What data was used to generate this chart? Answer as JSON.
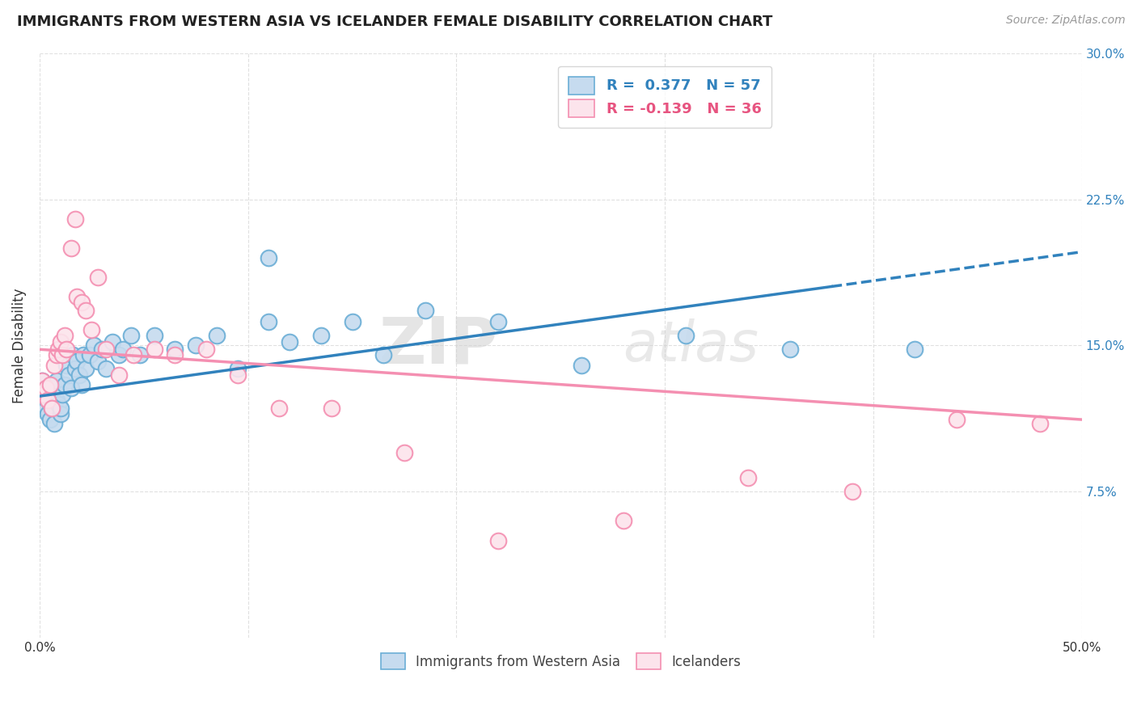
{
  "title": "IMMIGRANTS FROM WESTERN ASIA VS ICELANDER FEMALE DISABILITY CORRELATION CHART",
  "source": "Source: ZipAtlas.com",
  "ylabel": "Female Disability",
  "x_min": 0.0,
  "x_max": 0.5,
  "y_min": 0.0,
  "y_max": 0.3,
  "x_ticks": [
    0.0,
    0.1,
    0.2,
    0.3,
    0.4,
    0.5
  ],
  "x_tick_labels": [
    "0.0%",
    "",
    "",
    "",
    "",
    "50.0%"
  ],
  "y_ticks": [
    0.075,
    0.15,
    0.225,
    0.3
  ],
  "y_tick_labels": [
    "7.5%",
    "15.0%",
    "22.5%",
    "30.0%"
  ],
  "legend_label1": "R =  0.377   N = 57",
  "legend_label2": "R = -0.139   N = 36",
  "legend_label_bottom1": "Immigrants from Western Asia",
  "legend_label_bottom2": "Icelanders",
  "blue_color": "#6baed6",
  "pink_color": "#f48fb1",
  "blue_line_color": "#3182bd",
  "blue_dot_fill": "#c6dbef",
  "pink_dot_fill": "#fce4ec",
  "blue_line_intercept": 0.124,
  "blue_line_slope": 0.148,
  "pink_line_intercept": 0.148,
  "pink_line_slope": -0.072,
  "blue_scatter_x": [
    0.001,
    0.002,
    0.002,
    0.003,
    0.003,
    0.004,
    0.004,
    0.005,
    0.005,
    0.006,
    0.006,
    0.007,
    0.007,
    0.008,
    0.008,
    0.009,
    0.01,
    0.01,
    0.011,
    0.012,
    0.013,
    0.014,
    0.015,
    0.016,
    0.017,
    0.018,
    0.019,
    0.02,
    0.021,
    0.022,
    0.024,
    0.026,
    0.028,
    0.03,
    0.032,
    0.035,
    0.038,
    0.04,
    0.044,
    0.048,
    0.055,
    0.065,
    0.075,
    0.085,
    0.095,
    0.11,
    0.12,
    0.135,
    0.15,
    0.165,
    0.185,
    0.22,
    0.26,
    0.31,
    0.36,
    0.42,
    0.11
  ],
  "blue_scatter_y": [
    0.132,
    0.125,
    0.12,
    0.118,
    0.128,
    0.122,
    0.115,
    0.13,
    0.112,
    0.118,
    0.125,
    0.11,
    0.128,
    0.122,
    0.132,
    0.12,
    0.115,
    0.118,
    0.125,
    0.13,
    0.14,
    0.135,
    0.128,
    0.145,
    0.138,
    0.142,
    0.135,
    0.13,
    0.145,
    0.138,
    0.145,
    0.15,
    0.142,
    0.148,
    0.138,
    0.152,
    0.145,
    0.148,
    0.155,
    0.145,
    0.155,
    0.148,
    0.15,
    0.155,
    0.138,
    0.162,
    0.152,
    0.155,
    0.162,
    0.145,
    0.168,
    0.162,
    0.14,
    0.155,
    0.148,
    0.148,
    0.195
  ],
  "pink_scatter_x": [
    0.001,
    0.002,
    0.003,
    0.004,
    0.005,
    0.006,
    0.007,
    0.008,
    0.009,
    0.01,
    0.011,
    0.012,
    0.013,
    0.015,
    0.017,
    0.018,
    0.02,
    0.022,
    0.025,
    0.028,
    0.032,
    0.038,
    0.045,
    0.055,
    0.065,
    0.08,
    0.095,
    0.115,
    0.14,
    0.175,
    0.22,
    0.28,
    0.34,
    0.39,
    0.44,
    0.48
  ],
  "pink_scatter_y": [
    0.132,
    0.125,
    0.128,
    0.122,
    0.13,
    0.118,
    0.14,
    0.145,
    0.148,
    0.152,
    0.145,
    0.155,
    0.148,
    0.2,
    0.215,
    0.175,
    0.172,
    0.168,
    0.158,
    0.185,
    0.148,
    0.135,
    0.145,
    0.148,
    0.145,
    0.148,
    0.135,
    0.118,
    0.118,
    0.095,
    0.05,
    0.06,
    0.082,
    0.075,
    0.112,
    0.11
  ],
  "watermark_text": "ZIP",
  "watermark_text2": "atlas",
  "background_color": "#ffffff",
  "grid_color": "#dddddd"
}
